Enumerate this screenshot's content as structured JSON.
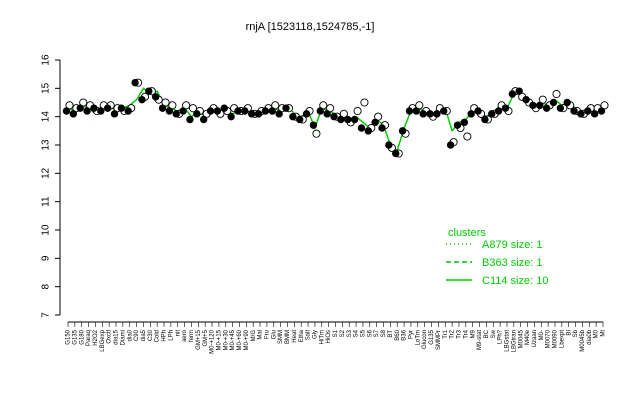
{
  "chart_data": {
    "type": "line",
    "title": "rnjA [1523118,1524785,-1]",
    "xlabel": "",
    "ylabel": "",
    "ylim": [
      7,
      16
    ],
    "yticks": [
      7,
      8,
      9,
      10,
      11,
      12,
      13,
      14,
      15,
      16
    ],
    "grid": false,
    "legend_position": "right",
    "legend_title": "clusters",
    "legend": [
      {
        "label": "A879 size: 1",
        "style": "dotted",
        "color": "#00cc00"
      },
      {
        "label": "B363 size: 1",
        "style": "dashed",
        "color": "#00cc00"
      },
      {
        "label": "C114 size: 10",
        "style": "solid",
        "color": "#00cc00"
      }
    ],
    "x_tick_labels": [
      "G150",
      "G135",
      "G180",
      "Paraq",
      "H2O2",
      "LBGexp",
      "Oxctl",
      "dia15",
      "Diami",
      "dia0",
      "C90",
      "dia5",
      "C30",
      "Cold",
      "HPh",
      "LPh",
      "nit",
      "aero",
      "ferm",
      "GM+15",
      "GM+5",
      "M0-+120",
      "M0-+15",
      "M0-+30",
      "M0-+45",
      "M0-+60",
      "M0-+90",
      "M/G",
      "Mal",
      "Fru",
      "Glu",
      "SMM",
      "BMM",
      "Heat",
      "Etha",
      "Salt",
      "Gly",
      "HiTm",
      "HiOs",
      "S1",
      "S2",
      "S3",
      "S4",
      "S5",
      "S6",
      "S7",
      "S8",
      "BT",
      "B60",
      "B36",
      "Pyr",
      "LoTm",
      "Glucon",
      "G135",
      "SMMPr",
      "Tr1",
      "Tr2",
      "Tr3",
      "Tr4",
      "M9",
      "M9-stat",
      "BC",
      "Sw",
      "LPh?",
      "LBGstat",
      "LBGtran",
      "M0045",
      "M40e",
      "Uzaan",
      "M0-",
      "M0070",
      "M0090",
      "Lbexpt",
      "BI",
      "Sb",
      "M0045b",
      "dia0b",
      "M0",
      "Mt"
    ],
    "series": [
      {
        "style": "solid",
        "color": "#00cc00",
        "values": [
          14.3,
          14.2,
          14.4,
          14.3,
          14.1,
          14.3,
          14.4,
          14.2,
          14.3,
          14.4,
          14.6,
          15.0,
          14.8,
          14.9,
          14.4,
          14.3,
          14.2,
          14.3,
          14.0,
          14.2,
          14.0,
          14.3,
          14.2,
          14.2,
          14.1,
          14.2,
          14.3,
          14.2,
          14.1,
          14.2,
          14.3,
          14.2,
          14.4,
          14.1,
          14.0,
          14.2,
          13.6,
          14.3,
          14.2,
          14.1,
          14.0,
          13.9,
          14.0,
          13.8,
          13.6,
          13.9,
          13.7,
          13.0,
          12.8,
          13.6,
          14.2,
          14.3,
          14.2,
          14.1,
          14.2,
          14.3,
          13.5,
          13.8,
          13.9,
          14.2,
          14.2,
          14.0,
          14.2,
          14.3,
          14.3,
          14.8,
          14.8,
          14.6,
          14.4,
          14.5,
          14.4,
          14.6,
          14.4,
          14.5,
          14.3,
          14.2,
          14.3,
          14.2,
          14.3
        ]
      },
      {
        "style": "dotted",
        "color": "#00cc00",
        "values": [
          14.3,
          14.2,
          14.4,
          14.3,
          14.1,
          14.3,
          14.4,
          14.2,
          14.3,
          14.4,
          14.6,
          15.0,
          14.8,
          14.9,
          14.4,
          14.3,
          14.2,
          14.3,
          14.0,
          14.2,
          14.0,
          14.3,
          14.2,
          14.2,
          14.1,
          14.2,
          14.3,
          14.2,
          14.1,
          14.2,
          14.3,
          14.2,
          14.4,
          14.1,
          14.0,
          14.2,
          13.6,
          14.3,
          14.2,
          14.1,
          14.0,
          13.9,
          14.0,
          13.8,
          13.6,
          13.9,
          13.7,
          13.0,
          12.8,
          13.6,
          14.2,
          14.3,
          14.2,
          14.1,
          14.2,
          14.3,
          13.5,
          13.8,
          13.9,
          14.2,
          14.2,
          14.0,
          14.2,
          14.3,
          14.3,
          14.8,
          14.8,
          14.6,
          14.4,
          14.5,
          14.4,
          14.6,
          14.4,
          14.5,
          14.3,
          14.2,
          14.3,
          14.2,
          14.3
        ]
      }
    ],
    "points_open": [
      14.4,
      14.3,
      14.5,
      14.4,
      14.2,
      14.4,
      14.4,
      14.3,
      14.2,
      14.3,
      15.2,
      14.7,
      14.9,
      14.6,
      14.5,
      14.4,
      14.1,
      14.4,
      14.3,
      14.2,
      14.1,
      14.3,
      14.1,
      14.2,
      14.3,
      14.2,
      14.3,
      14.1,
      14.2,
      14.3,
      14.4,
      14.3,
      14.3,
      14.0,
      13.9,
      14.2,
      13.4,
      14.4,
      14.3,
      14.0,
      14.1,
      13.8,
      14.2,
      14.5,
      13.6,
      14.0,
      13.7,
      12.9,
      12.7,
      13.4,
      14.3,
      14.4,
      14.2,
      14.0,
      14.3,
      14.2,
      13.1,
      13.6,
      13.3,
      14.3,
      14.1,
      13.9,
      14.1,
      14.4,
      14.2,
      14.9,
      14.7,
      14.5,
      14.3,
      14.6,
      14.4,
      14.8,
      14.3,
      14.4,
      14.2,
      14.1,
      14.3,
      14.3,
      14.4
    ],
    "points_filled": [
      14.2,
      14.1,
      14.3,
      14.2,
      14.3,
      14.2,
      14.3,
      14.1,
      14.3,
      14.2,
      15.2,
      14.6,
      14.9,
      14.7,
      14.3,
      14.2,
      14.1,
      14.2,
      13.9,
      14.1,
      13.9,
      14.2,
      14.2,
      14.3,
      14.0,
      14.2,
      14.2,
      14.1,
      14.1,
      14.2,
      14.2,
      14.1,
      14.3,
      14.0,
      13.9,
      14.1,
      13.7,
      14.2,
      14.1,
      14.0,
      13.9,
      13.9,
      13.9,
      13.6,
      13.5,
      13.8,
      13.6,
      13.0,
      12.7,
      13.5,
      14.2,
      14.2,
      14.1,
      14.1,
      14.1,
      14.2,
      13.0,
      13.7,
      13.8,
      14.1,
      14.2,
      13.9,
      14.1,
      14.2,
      14.3,
      14.8,
      14.9,
      14.6,
      14.4,
      14.4,
      14.3,
      14.5,
      14.3,
      14.5,
      14.2,
      14.1,
      14.2,
      14.1,
      14.2
    ]
  }
}
